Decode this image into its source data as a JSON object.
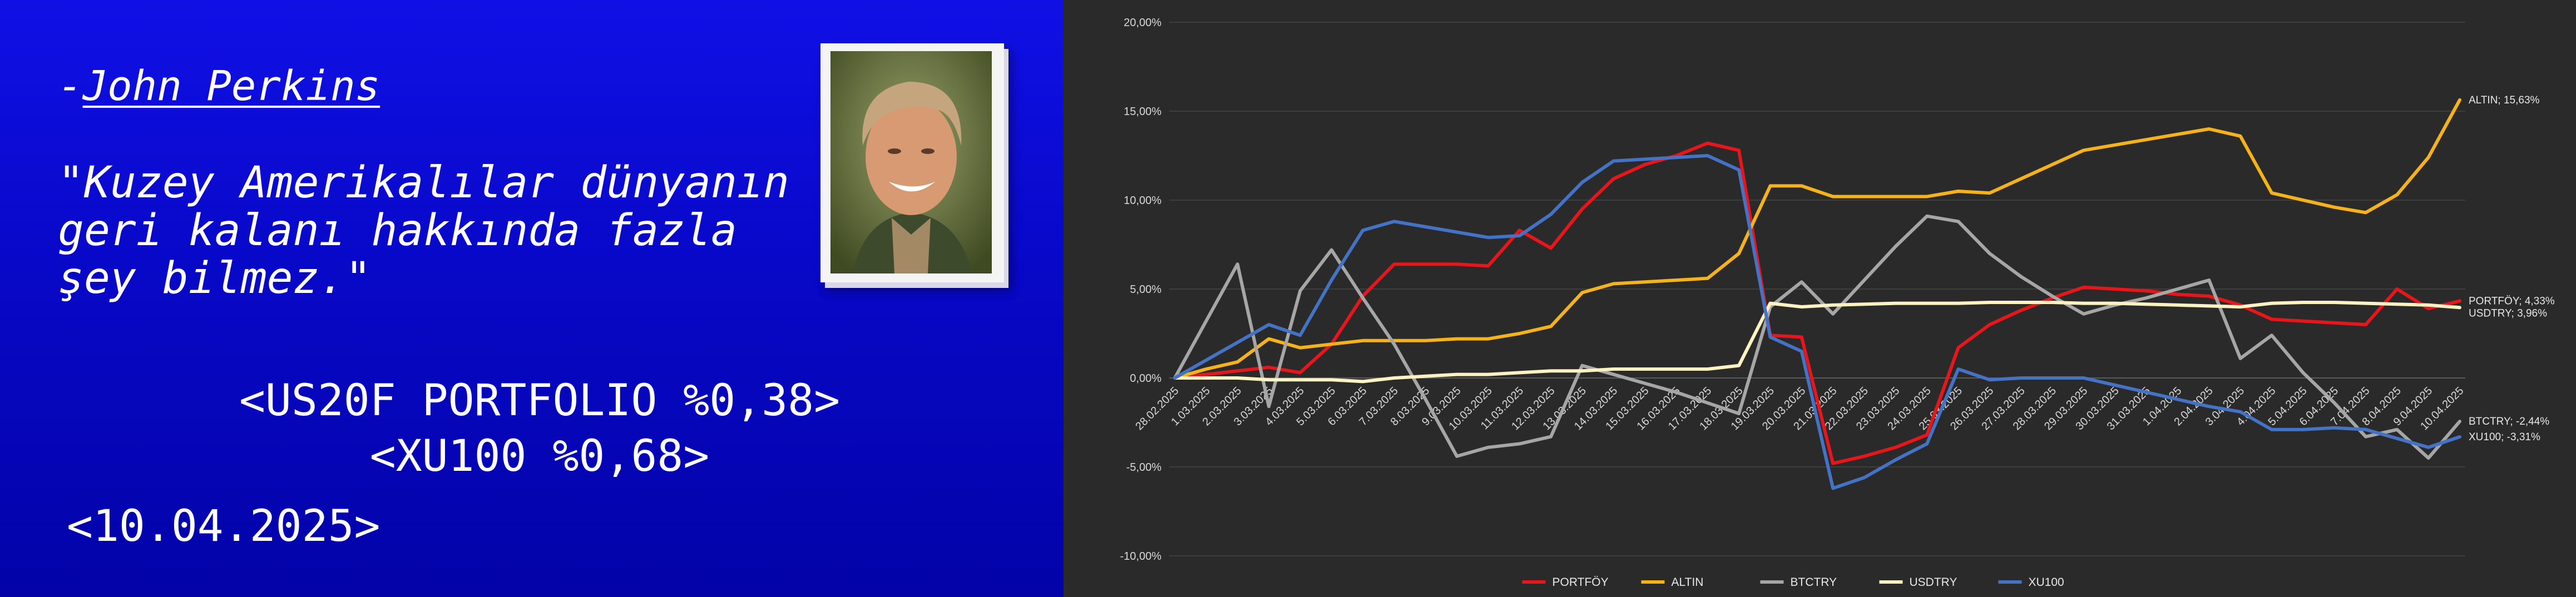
{
  "left": {
    "author_prefix": "-",
    "author_name": "John Perkins",
    "quote": "\"Kuzey Amerikalılar dünyanın\ngeri kalanı hakkında fazla\nşey bilmez.\"",
    "stat_portfolio": "<US20F PORTFOLIO %0,38>",
    "stat_index": "<XU100 %0,68>",
    "date": "<10.04.2025>"
  },
  "chart_data": {
    "type": "line",
    "x": [
      "28.02.2025",
      "1.03.2025",
      "2.03.2025",
      "3.03.2025",
      "4.03.2025",
      "5.03.2025",
      "6.03.2025",
      "7.03.2025",
      "8.03.2025",
      "9.03.2025",
      "10.03.2025",
      "11.03.2025",
      "12.03.2025",
      "13.03.2025",
      "14.03.2025",
      "15.03.2025",
      "16.03.2025",
      "17.03.2025",
      "18.03.2025",
      "19.03.2025",
      "20.03.2025",
      "21.03.2025",
      "22.03.2025",
      "23.03.2025",
      "24.03.2025",
      "25.03.2025",
      "26.03.2025",
      "27.03.2025",
      "28.03.2025",
      "29.03.2025",
      "30.03.2025",
      "31.03.2025",
      "1.04.2025",
      "2.04.2025",
      "3.04.2025",
      "4.04.2025",
      "5.04.2025",
      "6.04.2025",
      "7.04.2025",
      "8.04.2025",
      "9.04.2025",
      "10.04.2025"
    ],
    "x_tick_labels": [
      "28.02.2025",
      "1.03.2025",
      "2.03.2025",
      "3.03.2025",
      "4.03.2025",
      "5.03.2025",
      "6.03.2025",
      "7.03.2025",
      "8.03.2025",
      "9.03.2025",
      "10.03.2025",
      "11.03.2025",
      "12.03.2025",
      "13.03.2025",
      "14.03.2025",
      "15.03.2025",
      "16.03.2025",
      "17.03.2025",
      "18.03.2025",
      "19.03.2025",
      "20.03.2025",
      "21.03.2025",
      "22.03.2025",
      "23.03.2025",
      "24.03.2025",
      "25.03.2025",
      "26.03.2025",
      "27.03.2025",
      "28.03.2025",
      "29.03.2025",
      "30.03.2025",
      "31.03.2025",
      "1.04.2025",
      "2.04.2025",
      "3.04.2025",
      "4.04.2025",
      "5.04.2025",
      "6.04.2025",
      "7.04.2025",
      "8.04.2025",
      "9.04.2025",
      "10.04.2025"
    ],
    "y_ticks": [
      "20,00%",
      "15,00%",
      "10,00%",
      "5,00%",
      "0,00%",
      "-5,00%",
      "-10,00%"
    ],
    "ylim": [
      -10,
      20
    ],
    "grid": true,
    "legend_position": "bottom",
    "series": [
      {
        "name": "PORTFÖY",
        "color": "#e8161b",
        "end_label": "PORTFÖY; 4,33%",
        "values": [
          0,
          0.2,
          0.4,
          0.6,
          0.3,
          1.9,
          4.6,
          6.4,
          6.4,
          6.4,
          6.3,
          8.3,
          7.3,
          9.5,
          11.2,
          12.0,
          12.5,
          13.2,
          12.8,
          2.4,
          2.3,
          -4.8,
          -4.4,
          -3.9,
          -3.2,
          1.7,
          3.0,
          3.8,
          4.5,
          5.1,
          5.0,
          4.9,
          4.7,
          4.6,
          4.1,
          3.3,
          3.2,
          3.1,
          3.0,
          5.0,
          3.9,
          4.33
        ]
      },
      {
        "name": "ALTIN",
        "color": "#f5b318",
        "end_label": "ALTIN; 15,63%",
        "values": [
          0,
          0.5,
          0.9,
          2.2,
          1.7,
          1.9,
          2.1,
          2.1,
          2.1,
          2.2,
          2.2,
          2.5,
          2.9,
          4.8,
          5.3,
          5.4,
          5.5,
          5.6,
          7.0,
          10.8,
          10.8,
          10.2,
          10.2,
          10.2,
          10.2,
          10.5,
          10.4,
          11.2,
          12.0,
          12.8,
          13.1,
          13.4,
          13.7,
          14.0,
          13.6,
          10.4,
          10.0,
          9.6,
          9.3,
          10.3,
          12.4,
          15.63
        ]
      },
      {
        "name": "BTCTRY",
        "color": "#a6a6a6",
        "end_label": "BTCTRY; -2,44%",
        "values": [
          0,
          3.2,
          6.4,
          -1.6,
          4.9,
          7.2,
          4.5,
          1.9,
          -1.2,
          -4.4,
          -3.9,
          -3.7,
          -3.3,
          0.7,
          0.2,
          -0.3,
          -0.8,
          -1.4,
          -2.0,
          4.0,
          5.4,
          3.6,
          5.5,
          7.4,
          9.1,
          8.8,
          7.0,
          5.7,
          4.6,
          3.6,
          4.1,
          4.5,
          5.0,
          5.5,
          1.1,
          2.4,
          0.3,
          -1.4,
          -3.3,
          -2.9,
          -4.5,
          -2.44
        ]
      },
      {
        "name": "USDTRY",
        "color": "#fff2c2",
        "end_label": "USDTRY; 3,96%",
        "values": [
          0,
          0.0,
          0.0,
          -0.1,
          -0.1,
          -0.1,
          -0.2,
          0.0,
          0.1,
          0.2,
          0.2,
          0.3,
          0.4,
          0.4,
          0.5,
          0.5,
          0.5,
          0.5,
          0.7,
          4.2,
          4.0,
          4.1,
          4.15,
          4.2,
          4.2,
          4.2,
          4.25,
          4.25,
          4.25,
          4.2,
          4.2,
          4.15,
          4.1,
          4.05,
          4.0,
          4.2,
          4.25,
          4.25,
          4.2,
          4.15,
          4.1,
          3.96
        ]
      },
      {
        "name": "XU100",
        "color": "#4472c4",
        "end_label": "XU100; -3,31%",
        "values": [
          0,
          1.0,
          2.0,
          3.0,
          2.4,
          5.5,
          8.3,
          8.8,
          8.5,
          8.2,
          7.9,
          8.0,
          9.2,
          11.0,
          12.2,
          12.3,
          12.4,
          12.5,
          11.7,
          2.3,
          1.5,
          -6.2,
          -5.6,
          -4.6,
          -3.7,
          0.5,
          -0.1,
          0.0,
          0.0,
          0.0,
          -0.4,
          -0.8,
          -1.2,
          -1.6,
          -1.9,
          -2.9,
          -2.9,
          -2.8,
          -2.9,
          -3.4,
          -3.9,
          -3.31
        ]
      }
    ]
  }
}
